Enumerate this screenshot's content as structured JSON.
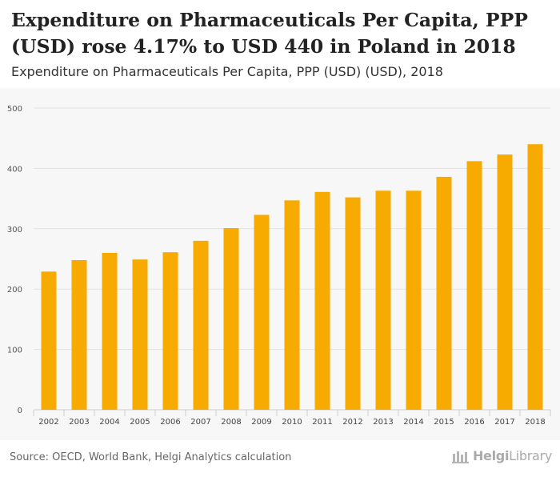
{
  "header": {
    "title": "Expenditure on Pharmaceuticals Per Capita, PPP (USD) rose 4.17% to USD 440 in Poland in 2018",
    "subtitle": "Expenditure on Pharmaceuticals Per Capita, PPP (USD) (USD), 2018"
  },
  "footer": {
    "source": "Source: OECD, World Bank, Helgi Analytics calculation",
    "logo_bold": "Helgi",
    "logo_light": "Library",
    "logo_icon": "helgi-library-logo-icon"
  },
  "colors": {
    "bar": "#f7aa00",
    "grid": "#e2e2e2",
    "plot_background": "#f7f7f7"
  },
  "chart_data": {
    "type": "bar",
    "title": "",
    "xlabel": "",
    "ylabel": "",
    "categories": [
      "2002",
      "2003",
      "2004",
      "2005",
      "2006",
      "2007",
      "2008",
      "2009",
      "2010",
      "2011",
      "2012",
      "2013",
      "2014",
      "2015",
      "2016",
      "2017",
      "2018"
    ],
    "values": [
      229,
      248,
      260,
      249,
      261,
      280,
      301,
      323,
      347,
      361,
      352,
      363,
      363,
      386,
      412,
      423,
      440
    ],
    "ylim": [
      0,
      500
    ],
    "yticks": [
      "0",
      "100",
      "200",
      "300",
      "400",
      "500"
    ],
    "grid": true,
    "legend": "none"
  }
}
